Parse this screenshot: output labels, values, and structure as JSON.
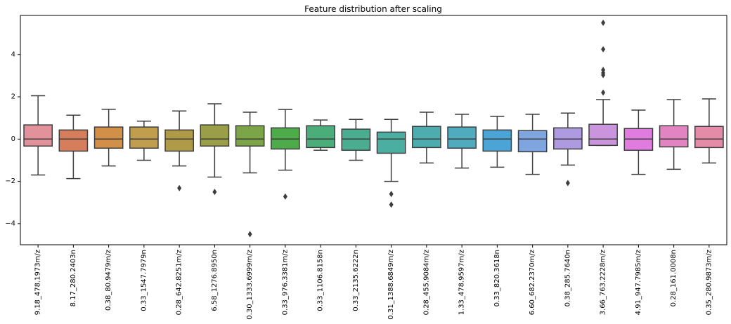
{
  "chart_data": {
    "type": "box",
    "title": "Feature distribution after scaling",
    "xlabel": "",
    "ylabel": "",
    "ylim": [
      -5.0,
      5.85
    ],
    "yticks": [
      "−4",
      "−2",
      "0",
      "2",
      "4"
    ],
    "ytick_values": [
      -4,
      -2,
      0,
      2,
      4
    ],
    "grid": false,
    "categories": [
      "9.18_478.1973m/z",
      "8.17_280.2403n",
      "0.38_80.9479m/z",
      "0.33_1547.7979n",
      "0.28_642.8251m/z",
      "6.58_1276.8950n",
      "0.30_1333.6999m/z",
      "0.33_976.3381m/z",
      "0.33_1106.8158n",
      "0.33_2135.6222n",
      "0.31_1388.6849m/z",
      "0.28_455.9084m/z",
      "1.33_478.9597m/z",
      "0.33_820.3618n",
      "6.60_682.2370m/z",
      "0.38_285.7640n",
      "3.66_763.2228m/z",
      "4.91_947.7985m/z",
      "0.28_161.0008n",
      "0.35_280.9873m/z"
    ],
    "boxes": [
      {
        "whislo": -1.7,
        "q1": -0.33,
        "med": 0.0,
        "q3": 0.67,
        "whishi": 2.05,
        "fliers": [],
        "color": "#e1929b"
      },
      {
        "whislo": -1.87,
        "q1": -0.57,
        "med": 0.0,
        "q3": 0.43,
        "whishi": 1.13,
        "fliers": [],
        "color": "#d67d5c"
      },
      {
        "whislo": -1.27,
        "q1": -0.43,
        "med": 0.0,
        "q3": 0.57,
        "whishi": 1.41,
        "fliers": [],
        "color": "#d28f48"
      },
      {
        "whislo": -1.0,
        "q1": -0.43,
        "med": 0.0,
        "q3": 0.57,
        "whishi": 0.85,
        "fliers": [],
        "color": "#c19e4e"
      },
      {
        "whislo": -1.27,
        "q1": -0.57,
        "med": 0.0,
        "q3": 0.43,
        "whishi": 1.33,
        "fliers": [
          -2.32
        ],
        "color": "#ae9a47"
      },
      {
        "whislo": -1.8,
        "q1": -0.33,
        "med": 0.0,
        "q3": 0.67,
        "whishi": 1.67,
        "fliers": [
          -2.5
        ],
        "color": "#9a9e47"
      },
      {
        "whislo": -1.6,
        "q1": -0.33,
        "med": 0.0,
        "q3": 0.63,
        "whishi": 1.27,
        "fliers": [
          -4.5
        ],
        "color": "#7ba547"
      },
      {
        "whislo": -1.47,
        "q1": -0.47,
        "med": 0.0,
        "q3": 0.53,
        "whishi": 1.4,
        "fliers": [
          -2.72
        ],
        "color": "#4eab49"
      },
      {
        "whislo": -0.53,
        "q1": -0.4,
        "med": 0.0,
        "q3": 0.63,
        "whishi": 0.9,
        "fliers": [],
        "color": "#4aad7a"
      },
      {
        "whislo": -1.0,
        "q1": -0.53,
        "med": 0.0,
        "q3": 0.47,
        "whishi": 0.93,
        "fliers": [],
        "color": "#4aad8f"
      },
      {
        "whislo": -2.0,
        "q1": -0.67,
        "med": 0.0,
        "q3": 0.33,
        "whishi": 0.93,
        "fliers": [
          -2.6,
          -3.1
        ],
        "color": "#4aaea0"
      },
      {
        "whislo": -1.13,
        "q1": -0.4,
        "med": 0.0,
        "q3": 0.6,
        "whishi": 1.27,
        "fliers": [],
        "color": "#4dadae"
      },
      {
        "whislo": -1.37,
        "q1": -0.43,
        "med": 0.0,
        "q3": 0.57,
        "whishi": 1.17,
        "fliers": [],
        "color": "#4fabbd"
      },
      {
        "whislo": -1.33,
        "q1": -0.57,
        "med": 0.0,
        "q3": 0.43,
        "whishi": 1.07,
        "fliers": [],
        "color": "#4aa5d6"
      },
      {
        "whislo": -1.67,
        "q1": -0.6,
        "med": 0.0,
        "q3": 0.4,
        "whishi": 1.17,
        "fliers": [],
        "color": "#7ea5df"
      },
      {
        "whislo": -1.23,
        "q1": -0.47,
        "med": 0.0,
        "q3": 0.53,
        "whishi": 1.23,
        "fliers": [
          -2.08
        ],
        "color": "#ae9ae1"
      },
      {
        "whislo": -0.3,
        "q1": -0.3,
        "med": 0.0,
        "q3": 0.7,
        "whishi": 1.87,
        "fliers": [
          2.2,
          3.03,
          3.13,
          3.27,
          4.25,
          5.5
        ],
        "color": "#cb95dd"
      },
      {
        "whislo": -1.67,
        "q1": -0.53,
        "med": 0.0,
        "q3": 0.5,
        "whishi": 1.37,
        "fliers": [],
        "color": "#e07ce0"
      },
      {
        "whislo": -1.43,
        "q1": -0.37,
        "med": 0.0,
        "q3": 0.63,
        "whishi": 1.87,
        "fliers": [],
        "color": "#e384c2"
      },
      {
        "whislo": -1.13,
        "q1": -0.4,
        "med": 0.0,
        "q3": 0.6,
        "whishi": 1.9,
        "fliers": [],
        "color": "#e48ba8"
      }
    ]
  }
}
